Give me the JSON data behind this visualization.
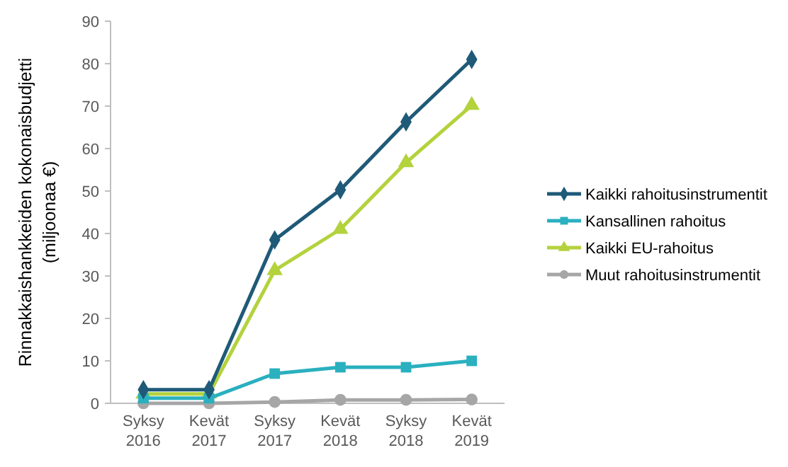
{
  "chart_data": {
    "type": "line",
    "ylabel": "Rinnakkaishankkeiden kokonaisbudjetti\n(miljoonaa €)",
    "categories": [
      "Syksy\n2016",
      "Kevät\n2017",
      "Syksy\n2017",
      "Kevät\n2018",
      "Syksy\n2018",
      "Kevät\n2019"
    ],
    "ylim": [
      0,
      90
    ],
    "yticks": [
      0,
      10,
      20,
      30,
      40,
      50,
      60,
      70,
      80,
      90
    ],
    "grid": false,
    "legend": "right",
    "series": [
      {
        "name": "Kaikki rahoitusinstrumentit",
        "color": "#1f5a78",
        "marker": "diamond",
        "values": [
          3.2,
          3.2,
          38.5,
          50.3,
          66.3,
          81
        ]
      },
      {
        "name": "Kansallinen rahoitus",
        "color": "#2ab0bf",
        "marker": "square",
        "values": [
          1.2,
          1.2,
          7,
          8.5,
          8.5,
          10
        ]
      },
      {
        "name": "Kaikki EU-rahoitus",
        "color": "#b3d23c",
        "marker": "triangle",
        "values": [
          2.2,
          2.2,
          31.3,
          41,
          56.7,
          70.2
        ]
      },
      {
        "name": "Muut rahoitusinstrumentit",
        "color": "#a6a6a6",
        "marker": "circle",
        "values": [
          0,
          0,
          0.3,
          0.8,
          0.8,
          0.9
        ]
      }
    ]
  }
}
